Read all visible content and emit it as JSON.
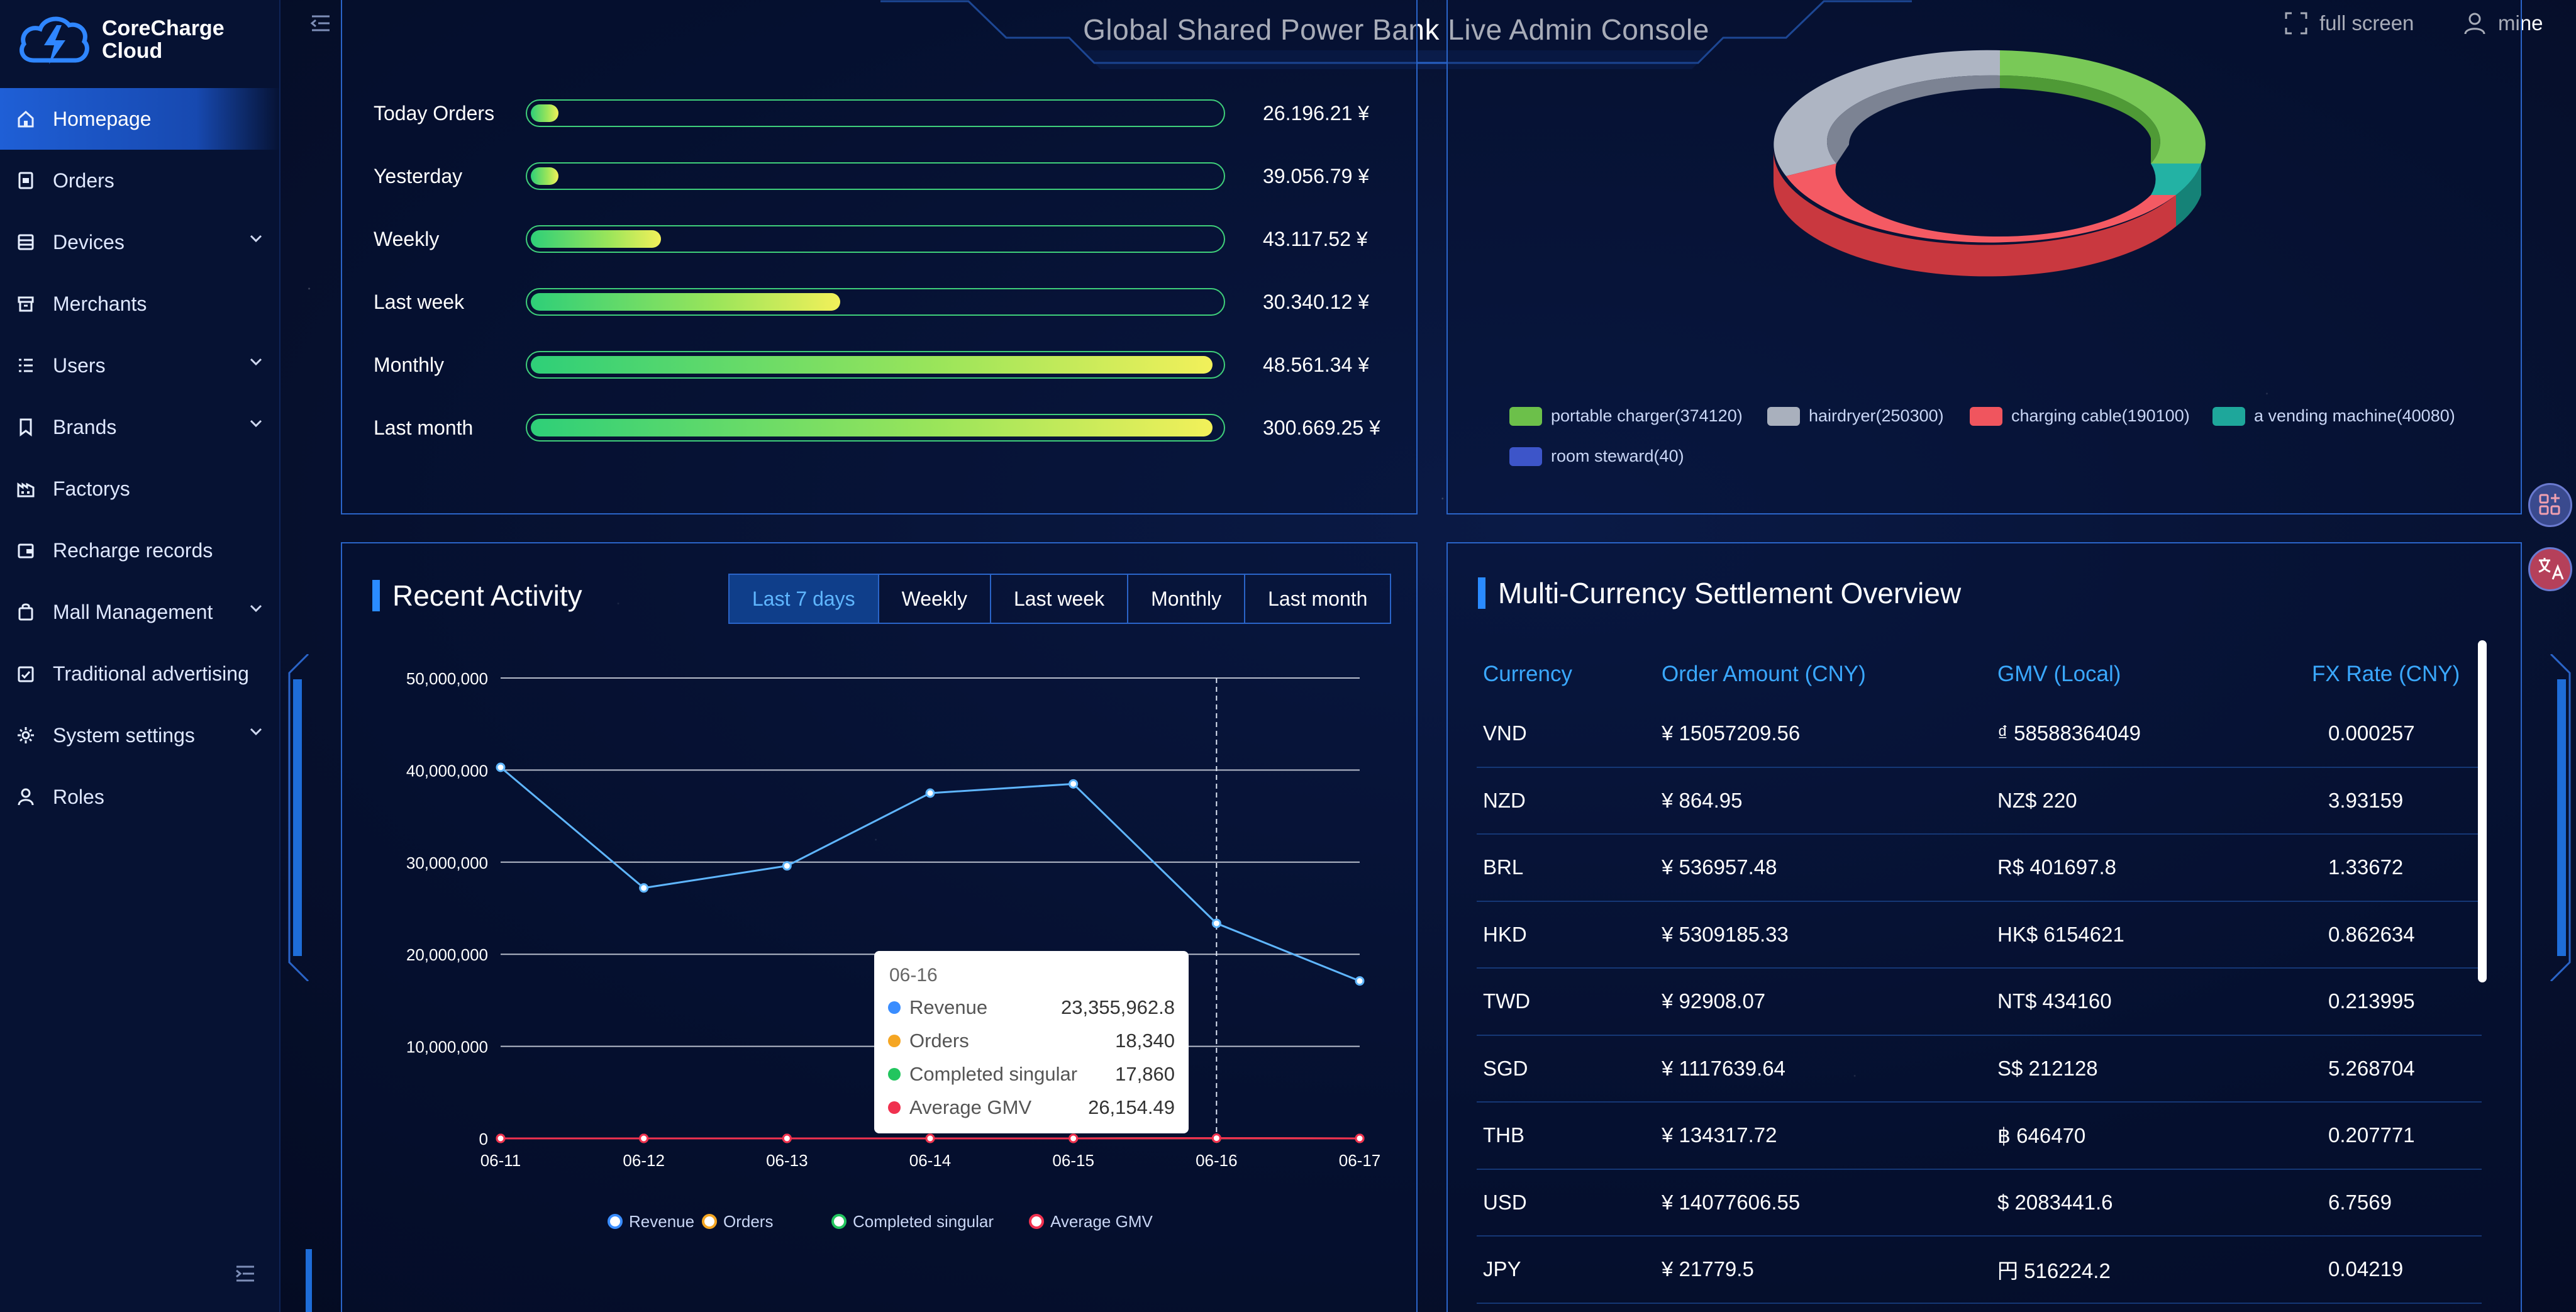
{
  "app": {
    "logo_line1": "CoreCharge",
    "logo_line2": "Cloud",
    "title": "Global Shared Power Bank Live Admin Console",
    "fullscreen_label": "full screen",
    "user_label": "mine"
  },
  "sidebar": {
    "items": [
      {
        "label": "Homepage",
        "icon": "home-icon",
        "active": true,
        "expandable": false
      },
      {
        "label": "Orders",
        "icon": "orders-icon",
        "active": false,
        "expandable": false
      },
      {
        "label": "Devices",
        "icon": "devices-icon",
        "active": false,
        "expandable": true
      },
      {
        "label": "Merchants",
        "icon": "store-icon",
        "active": false,
        "expandable": false
      },
      {
        "label": "Users",
        "icon": "users-icon",
        "active": false,
        "expandable": true
      },
      {
        "label": "Brands",
        "icon": "bookmark-icon",
        "active": false,
        "expandable": true
      },
      {
        "label": "Factorys",
        "icon": "factory-icon",
        "active": false,
        "expandable": false
      },
      {
        "label": "Recharge records",
        "icon": "wallet-icon",
        "active": false,
        "expandable": false
      },
      {
        "label": "Mall Management",
        "icon": "bag-icon",
        "active": false,
        "expandable": true
      },
      {
        "label": "Traditional advertising",
        "icon": "ad-icon",
        "active": false,
        "expandable": false
      },
      {
        "label": "System settings",
        "icon": "gear-icon",
        "active": false,
        "expandable": true
      },
      {
        "label": "Roles",
        "icon": "person-icon",
        "active": false,
        "expandable": false
      }
    ]
  },
  "stats": {
    "rows": [
      {
        "label": "Today Orders",
        "value": "26.196.21 ¥",
        "progress": 0.05
      },
      {
        "label": "Yesterday",
        "value": "39.056.79 ¥",
        "progress": 0.05
      },
      {
        "label": "Weekly",
        "value": "43.117.52 ¥",
        "progress": 0.2
      },
      {
        "label": "Last week",
        "value": "30.340.12 ¥",
        "progress": 0.46
      },
      {
        "label": "Monthly",
        "value": "48.561.34 ¥",
        "progress": 1.0
      },
      {
        "label": "Last month",
        "value": "300.669.25 ¥",
        "progress": 1.0
      }
    ]
  },
  "device_legend": {
    "items": [
      {
        "label": "portable charger(374120)",
        "color": "#6cc04a"
      },
      {
        "label": "hairdryer(250300)",
        "color": "#a9b0bd"
      },
      {
        "label": "charging cable(190100)",
        "color": "#f0555e"
      },
      {
        "label": "a vending machine(40080)",
        "color": "#1ea79b"
      },
      {
        "label": "room steward(40)",
        "color": "#3d55c9"
      }
    ]
  },
  "activity": {
    "title": "Recent Activity",
    "tabs": [
      "Last 7 days",
      "Weekly",
      "Last week",
      "Monthly",
      "Last month"
    ],
    "active_tab": 0,
    "tooltip": {
      "date": "06-16",
      "rows": [
        {
          "label": "Revenue",
          "value": "23,355,962.8",
          "color": "#3a8dff"
        },
        {
          "label": "Orders",
          "value": "18,340",
          "color": "#f5a623"
        },
        {
          "label": "Completed singular",
          "value": "17,860",
          "color": "#22c55e"
        },
        {
          "label": "Average GMV",
          "value": "26,154.49",
          "color": "#f0314f"
        }
      ]
    }
  },
  "chart_data": {
    "type": "line",
    "x": [
      "06-11",
      "06-12",
      "06-13",
      "06-14",
      "06-15",
      "06-16",
      "06-17"
    ],
    "ylim": [
      0,
      50000000
    ],
    "yticks": [
      "0",
      "10,000,000",
      "20,000,000",
      "30,000,000",
      "40,000,000",
      "50,000,000"
    ],
    "series": [
      {
        "name": "Revenue",
        "color": "#5fb6ff",
        "values": [
          40300000,
          27200000,
          29600000,
          37500000,
          38500000,
          23355962.8,
          17100000
        ]
      },
      {
        "name": "Orders",
        "color": "#f5a623",
        "values": [
          0,
          0,
          0,
          0,
          0,
          18340,
          0
        ]
      },
      {
        "name": "Completed singular",
        "color": "#22c55e",
        "values": [
          0,
          0,
          0,
          0,
          0,
          17860,
          0
        ]
      },
      {
        "name": "Average GMV",
        "color": "#f0314f",
        "values": [
          0,
          0,
          0,
          0,
          0,
          26154.49,
          0
        ]
      }
    ],
    "grid": true,
    "legend": "bottom"
  },
  "settlement": {
    "title": "Multi-Currency Settlement Overview",
    "headers": [
      "Currency",
      "Order Amount (CNY)",
      "GMV (Local)",
      "FX Rate (CNY)"
    ],
    "rows": [
      [
        "VND",
        "¥ 15057209.56",
        "₫ 58588364049",
        "0.000257"
      ],
      [
        "NZD",
        "¥ 864.95",
        "NZ$ 220",
        "3.93159"
      ],
      [
        "BRL",
        "¥ 536957.48",
        "R$ 401697.8",
        "1.33672"
      ],
      [
        "HKD",
        "¥ 5309185.33",
        "HK$ 6154621",
        "0.862634"
      ],
      [
        "TWD",
        "¥ 92908.07",
        "NT$ 434160",
        "0.213995"
      ],
      [
        "SGD",
        "¥ 1117639.64",
        "S$ 212128",
        "5.268704"
      ],
      [
        "THB",
        "¥ 134317.72",
        "฿ 646470",
        "0.207771"
      ],
      [
        "USD",
        "¥ 14077606.55",
        "$ 2083441.6",
        "6.7569"
      ],
      [
        "JPY",
        "¥ 21779.5",
        "円 516224.2",
        "0.04219"
      ]
    ]
  }
}
